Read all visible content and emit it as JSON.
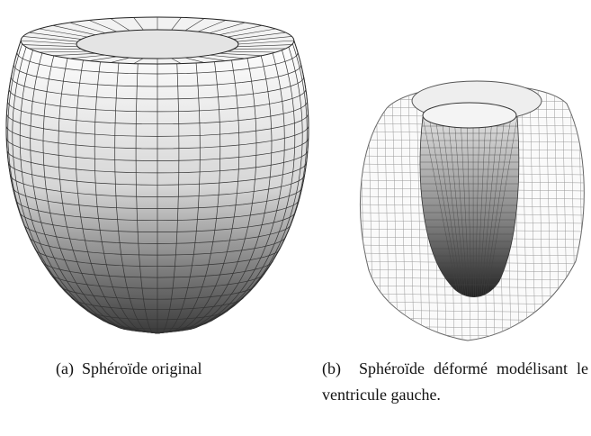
{
  "figures": [
    {
      "label": "(a)",
      "caption": "Sphéroïde original"
    },
    {
      "label": "(b)",
      "caption": "Sphéroïde déformé modélisant le ventricule gauche."
    }
  ]
}
